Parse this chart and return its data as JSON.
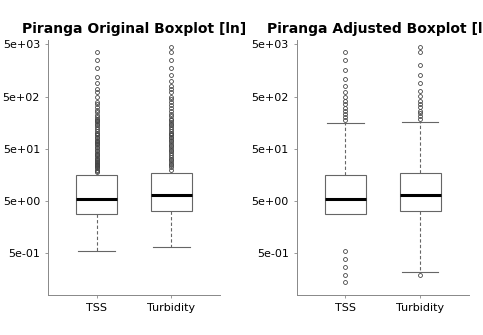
{
  "title_left": "Piranga Original Boxplot [ln]",
  "title_right": "Piranga Adjusted Boxplot [ln]",
  "categories": [
    "TSS",
    "Turbidity"
  ],
  "background_color": "#ffffff",
  "orig_tss": {
    "q1": 2.8,
    "median": 5.5,
    "q3": 16.0,
    "whisker_low": 0.55,
    "whisker_high": 13.0,
    "outliers_high": [
      18,
      19,
      20,
      21,
      22,
      23,
      24,
      25,
      26,
      27,
      28,
      29,
      30,
      32,
      34,
      36,
      38,
      40,
      42,
      45,
      48,
      52,
      55,
      58,
      62,
      65,
      68,
      72,
      75,
      80,
      85,
      90,
      95,
      100,
      110,
      120,
      130,
      140,
      150,
      160,
      170,
      180,
      190,
      200,
      220,
      250,
      280,
      320,
      360,
      400,
      500,
      600,
      700,
      900,
      1200,
      1800,
      2500,
      3500
    ],
    "outliers_low": []
  },
  "orig_turb": {
    "q1": 3.2,
    "median": 6.5,
    "q3": 17.0,
    "whisker_low": 0.65,
    "whisker_high": 16.0,
    "outliers_high": [
      20,
      22,
      24,
      26,
      28,
      30,
      32,
      35,
      38,
      42,
      45,
      48,
      52,
      56,
      60,
      65,
      70,
      75,
      80,
      85,
      90,
      95,
      100,
      110,
      120,
      130,
      140,
      150,
      160,
      175,
      190,
      210,
      230,
      260,
      300,
      340,
      390,
      440,
      500,
      600,
      700,
      800,
      1000,
      1300,
      1800,
      2500,
      3500,
      4500
    ],
    "outliers_low": []
  },
  "adj_tss": {
    "q1": 2.8,
    "median": 5.5,
    "q3": 16.0,
    "whisker_low": 3.2,
    "whisker_high": 155.0,
    "outliers_high": [
      180,
      200,
      230,
      260,
      300,
      360,
      420,
      500,
      620,
      800,
      1100,
      1600,
      2500,
      3500
    ],
    "outliers_low": [
      0.55,
      0.38,
      0.27,
      0.19,
      0.14
    ]
  },
  "adj_turb": {
    "q1": 3.2,
    "median": 6.5,
    "q3": 17.0,
    "whisker_low": 0.22,
    "whisker_high": 165.0,
    "outliers_high": [
      190,
      210,
      240,
      270,
      310,
      360,
      420,
      510,
      650,
      900,
      1300,
      2000,
      3500,
      4500
    ],
    "outliers_low": [
      0.19
    ]
  },
  "ylim_orig": [
    0.08,
    6000
  ],
  "ylim_adj": [
    0.08,
    6000
  ],
  "yticks": [
    0.5,
    5.0,
    50.0,
    500.0,
    5000.0
  ],
  "ytick_labels": [
    "5e-01",
    "5e+00",
    "5e+01",
    "5e+02",
    "5e+03"
  ],
  "title_fontsize": 10,
  "tick_fontsize": 8,
  "box_width": 0.55
}
